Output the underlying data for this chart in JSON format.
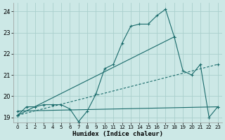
{
  "xlabel": "Humidex (Indice chaleur)",
  "bg_color": "#cce8e6",
  "line_color": "#1a6b6b",
  "grid_color": "#aacfcc",
  "xlim": [
    -0.5,
    23.5
  ],
  "ylim": [
    18.75,
    24.4
  ],
  "yticks": [
    19,
    20,
    21,
    22,
    23,
    24
  ],
  "xticks": [
    0,
    1,
    2,
    3,
    4,
    5,
    6,
    7,
    8,
    9,
    10,
    11,
    12,
    13,
    14,
    15,
    16,
    17,
    18,
    19,
    20,
    21,
    22,
    23
  ],
  "series_main_x": [
    0,
    1,
    2,
    3,
    4,
    5,
    6,
    7,
    8,
    9,
    10,
    11,
    12,
    13,
    14,
    15,
    16,
    17,
    18,
    19,
    20,
    21,
    22,
    23
  ],
  "series_main_y": [
    19.1,
    19.5,
    19.5,
    19.6,
    19.6,
    19.6,
    19.4,
    18.8,
    19.3,
    20.1,
    21.3,
    21.5,
    22.5,
    23.3,
    23.4,
    23.4,
    23.8,
    24.1,
    22.8,
    21.2,
    21.0,
    21.5,
    19.0,
    19.5
  ],
  "series_trend1_x": [
    0,
    18
  ],
  "series_trend1_y": [
    19.1,
    22.8
  ],
  "series_trend2_x": [
    0,
    23
  ],
  "series_trend2_y": [
    19.1,
    21.5
  ],
  "series_trend3_x": [
    0,
    23
  ],
  "series_trend3_y": [
    19.3,
    19.5
  ]
}
